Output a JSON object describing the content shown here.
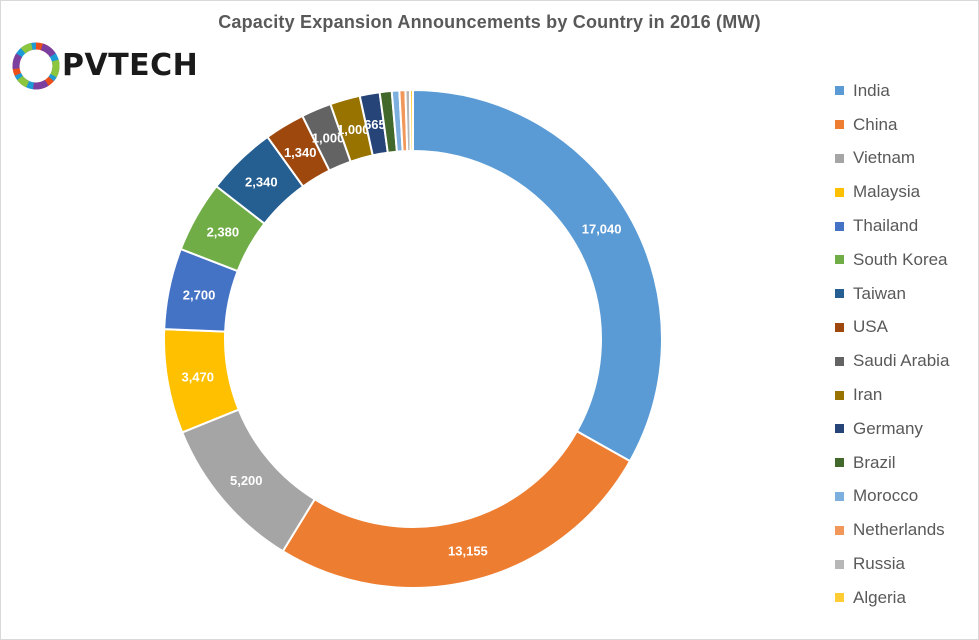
{
  "chart_data": {
    "type": "pie",
    "title": "Capacity Expansion Announcements by Country in 2016 (MW)",
    "slices": [
      {
        "label": "India",
        "value": 17040,
        "color": "#5b9bd5",
        "data_label": "17,040"
      },
      {
        "label": "China",
        "value": 13155,
        "color": "#ed7d31",
        "data_label": "13,155"
      },
      {
        "label": "Vietnam",
        "value": 5200,
        "color": "#a5a5a5",
        "data_label": "5,200"
      },
      {
        "label": "Malaysia",
        "value": 3470,
        "color": "#ffc000",
        "data_label": "3,470"
      },
      {
        "label": "Thailand",
        "value": 2700,
        "color": "#4472c4",
        "data_label": "2,700"
      },
      {
        "label": "South Korea",
        "value": 2380,
        "color": "#70ad47",
        "data_label": "2,380"
      },
      {
        "label": "Taiwan",
        "value": 2340,
        "color": "#255e91",
        "data_label": "2,340"
      },
      {
        "label": "USA",
        "value": 1340,
        "color": "#9e480e",
        "data_label": "1,340"
      },
      {
        "label": "Saudi Arabia",
        "value": 1000,
        "color": "#636363",
        "data_label": "1,000"
      },
      {
        "label": "Iran",
        "value": 1000,
        "color": "#997300",
        "data_label": "1,000"
      },
      {
        "label": "Germany",
        "value": 665,
        "color": "#264478",
        "data_label": "665"
      },
      {
        "label": "Brazil",
        "value": 400,
        "color": "#43682b",
        "data_label": ""
      },
      {
        "label": "Morocco",
        "value": 250,
        "color": "#7cafdd",
        "data_label": ""
      },
      {
        "label": "Netherlands",
        "value": 200,
        "color": "#f1975a",
        "data_label": ""
      },
      {
        "label": "Russia",
        "value": 150,
        "color": "#b7b7b7",
        "data_label": ""
      },
      {
        "label": "Algeria",
        "value": 100,
        "color": "#ffcd33",
        "data_label": ""
      }
    ],
    "legend_position": "right"
  },
  "logo": {
    "text": "PVTECH"
  }
}
